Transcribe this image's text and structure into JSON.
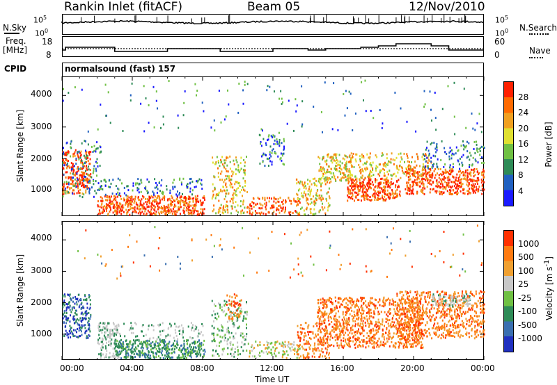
{
  "header": {
    "radar": "Rankin Inlet (fitACF)",
    "beam": "Beam 05",
    "date": "12/Nov/2010"
  },
  "strip": {
    "nsky_label": "N.Sky",
    "nsky_top": "10^5",
    "nsky_bottom": "10^0",
    "nsearch_top": "10^5",
    "nsearch_bottom": "10^0",
    "nsearch_label": "N.Search",
    "freq_label": "Freq.",
    "freq_unit": "[MHz]",
    "freq_top": "18",
    "freq_bottom": "8",
    "nave_top": "60",
    "nave_bottom": "0",
    "nave_label": "Nave",
    "cpid_label": "CPID",
    "cpid_text": "normalsound (fast) 157"
  },
  "colors": {
    "power": [
      "#1a1aff",
      "#2060c0",
      "#2e8b57",
      "#6fc043",
      "#e0e030",
      "#f0a020",
      "#ff6a00",
      "#ff2000"
    ],
    "velocity": [
      "#2030c0",
      "#3a6fb0",
      "#2e8b57",
      "#6fc043",
      "#c8c8c8",
      "#f0a030",
      "#ff7a10",
      "#ff3000"
    ]
  },
  "chart_data": [
    {
      "type": "heatmap",
      "panel": "power",
      "xlabel": "",
      "ylabel": "Slant Range [km]",
      "xlim": [
        0,
        24
      ],
      "ylim": [
        180,
        4600
      ],
      "yticks": [
        "1000",
        "2000",
        "3000",
        "4000"
      ],
      "colorbar_label": "Power [dB]",
      "colorbar_ticks": [
        "4",
        "8",
        "12",
        "16",
        "20",
        "24",
        "28"
      ],
      "colorbar_range": [
        0,
        32
      ]
    },
    {
      "type": "heatmap",
      "panel": "velocity",
      "xlabel": "Time UT",
      "ylabel": "Slant Range [km]",
      "xlim": [
        0,
        24
      ],
      "ylim": [
        180,
        4600
      ],
      "xticks": [
        "00:00",
        "04:00",
        "08:00",
        "12:00",
        "16:00",
        "20:00",
        "00:00"
      ],
      "yticks": [
        "1000",
        "2000",
        "3000",
        "4000"
      ],
      "colorbar_label": "Velocity [m s-1]",
      "colorbar_ticks": [
        "1000",
        "500",
        "100",
        "25",
        "-25",
        "-100",
        "-500",
        "-1000"
      ]
    }
  ]
}
